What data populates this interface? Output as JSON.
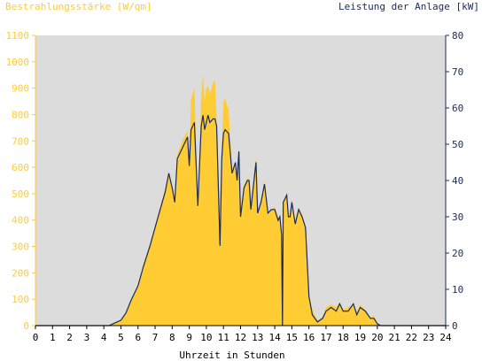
{
  "chart_data": {
    "type": "area",
    "left_axis_title": "Bestrahlungsstärke [W/qm]",
    "right_axis_title": "Leistung der Anlage [kW]",
    "x_axis_title": "Uhrzeit in Stunden",
    "xlim": [
      0,
      24
    ],
    "ylim_left": [
      0,
      1100
    ],
    "ylim_right": [
      0,
      80
    ],
    "x_ticks": [
      "0",
      "1",
      "2",
      "3",
      "4",
      "5",
      "6",
      "7",
      "8",
      "9",
      "10",
      "11",
      "12",
      "13",
      "14",
      "15",
      "16",
      "17",
      "18",
      "19",
      "20",
      "21",
      "22",
      "23",
      "24"
    ],
    "y_left_ticks": [
      "0",
      "100",
      "200",
      "300",
      "400",
      "500",
      "600",
      "700",
      "800",
      "900",
      "1000",
      "1100"
    ],
    "y_right_ticks": [
      "0",
      "10",
      "20",
      "30",
      "40",
      "50",
      "60",
      "70",
      "80"
    ],
    "grid": false,
    "colors": {
      "irradiance_fill": "#ffcc33",
      "power_line": "#1a2a5a",
      "plot_bg": "#dcdcdc"
    },
    "series": [
      {
        "axis": "left",
        "x": [
          0,
          4.3,
          5,
          5.3,
          5.6,
          6,
          6.3,
          6.7,
          7,
          7.3,
          7.6,
          7.8,
          8,
          8.15,
          8.3,
          8.6,
          8.9,
          9,
          9.1,
          9.3,
          9.5,
          9.7,
          9.8,
          9.9,
          10,
          10.1,
          10.2,
          10.4,
          10.5,
          10.6,
          10.8,
          10.9,
          11,
          11.1,
          11.3,
          11.5,
          11.7,
          11.8,
          11.9,
          12,
          12.2,
          12.4,
          12.5,
          12.6,
          12.9,
          13,
          13.2,
          13.4,
          13.6,
          13.8,
          14,
          14.2,
          14.3,
          14.4,
          14.45,
          14.5,
          14.6,
          14.7,
          14.8,
          14.9,
          15,
          15.2,
          15.4,
          15.6,
          15.8,
          16,
          16.2,
          16.5,
          16.8,
          17,
          17.3,
          17.6,
          17.8,
          18,
          18.3,
          18.6,
          18.8,
          19,
          19.3,
          19.6,
          19.8,
          20,
          20.2,
          20.5,
          24
        ],
        "y": [
          0,
          0,
          20,
          50,
          100,
          150,
          230,
          310,
          380,
          450,
          520,
          580,
          530,
          480,
          650,
          700,
          740,
          620,
          860,
          900,
          450,
          870,
          950,
          850,
          900,
          910,
          880,
          920,
          930,
          790,
          320,
          650,
          850,
          860,
          820,
          590,
          620,
          550,
          680,
          420,
          530,
          560,
          560,
          440,
          640,
          430,
          470,
          550,
          430,
          440,
          450,
          410,
          420,
          350,
          60,
          460,
          480,
          500,
          410,
          420,
          480,
          400,
          450,
          420,
          380,
          120,
          60,
          20,
          30,
          70,
          80,
          70,
          90,
          60,
          70,
          80,
          50,
          80,
          60,
          30,
          40,
          10,
          0,
          0,
          0
        ]
      },
      {
        "axis": "right",
        "x": [
          0,
          4.3,
          5,
          5.3,
          5.6,
          6,
          6.3,
          6.7,
          7,
          7.3,
          7.6,
          7.8,
          8,
          8.15,
          8.3,
          8.6,
          8.9,
          9,
          9.1,
          9.3,
          9.5,
          9.7,
          9.8,
          9.9,
          10,
          10.1,
          10.2,
          10.4,
          10.5,
          10.6,
          10.8,
          10.9,
          11,
          11.1,
          11.3,
          11.5,
          11.7,
          11.8,
          11.9,
          12,
          12.2,
          12.4,
          12.5,
          12.6,
          12.9,
          13,
          13.2,
          13.4,
          13.6,
          13.8,
          14,
          14.2,
          14.3,
          14.4,
          14.45,
          14.5,
          14.6,
          14.7,
          14.8,
          14.9,
          15,
          15.2,
          15.4,
          15.6,
          15.8,
          16,
          16.2,
          16.5,
          16.8,
          17,
          17.3,
          17.6,
          17.8,
          18,
          18.3,
          18.6,
          18.8,
          19,
          19.3,
          19.6,
          19.8,
          20,
          20.2,
          20.5,
          24
        ],
        "y": [
          0,
          0,
          1.5,
          3.5,
          7,
          11,
          16,
          22,
          27,
          32,
          37,
          42,
          38,
          34,
          46,
          49,
          52,
          44,
          54,
          56,
          33,
          55,
          58,
          54,
          56,
          58,
          56,
          57,
          57,
          55,
          22,
          46,
          53,
          54,
          53,
          42,
          45,
          40,
          48,
          30,
          38,
          40,
          40,
          32,
          45,
          31,
          34,
          39,
          31,
          32,
          32,
          29,
          30,
          25,
          0,
          34,
          35,
          36,
          30,
          30,
          34,
          28,
          32,
          30,
          27,
          8,
          3,
          1,
          2,
          4,
          5,
          4,
          6,
          4,
          4,
          6,
          3,
          5,
          4,
          2,
          2,
          0.5,
          0,
          0,
          0
        ]
      }
    ]
  }
}
